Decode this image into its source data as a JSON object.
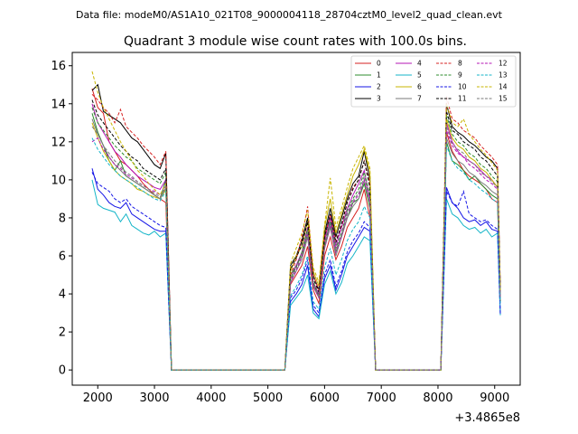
{
  "chart_data": {
    "type": "line",
    "suptitle": "Data file: modeM0/AS1A10_021T08_9000004118_28704cztM0_level2_quad_clean.evt",
    "title": "Quadrant 3 module wise count rates with 100.0s bins.",
    "xlabel": "",
    "ylabel": "",
    "x_offset_label": "+3.4865e8",
    "xlim": [
      1550,
      9450
    ],
    "ylim": [
      -0.8,
      16.7
    ],
    "x_ticks": [
      2000,
      3000,
      4000,
      5000,
      6000,
      7000,
      8000,
      9000
    ],
    "y_ticks": [
      0,
      2,
      4,
      6,
      8,
      10,
      12,
      14,
      16
    ],
    "legend_position": "upper-right",
    "segments": [
      {
        "x_start": 1900,
        "x_end": 3200
      },
      {
        "x_start": 5400,
        "x_end": 6800
      },
      {
        "x_start": 8150,
        "x_end": 9050
      }
    ],
    "gap_ramp_points": [
      3300,
      5300,
      6900,
      8050,
      9100
    ],
    "series": [
      {
        "name": "0",
        "color": "#d62020",
        "dashed": false,
        "s1": [
          14.8,
          13.8,
          13.5,
          12.0,
          11.5,
          11.0,
          10.8,
          10.5,
          10.2,
          9.8,
          9.5,
          9.2,
          9.0,
          8.8
        ],
        "s2": [
          4.5,
          5.0,
          5.5,
          6.5,
          4.2,
          3.5,
          6.0,
          7.0,
          5.8,
          6.5,
          7.5,
          8.0,
          8.5,
          9.5,
          8.0
        ],
        "s3": [
          12.5,
          11.5,
          11.0,
          10.5,
          10.2,
          10.0,
          9.8,
          9.5,
          9.0,
          8.8
        ]
      },
      {
        "name": "1",
        "color": "#2c8c2c",
        "dashed": false,
        "s1": [
          13.5,
          12.5,
          11.8,
          11.0,
          10.5,
          11.0,
          10.2,
          10.0,
          9.8,
          9.6,
          9.4,
          9.2,
          9.0,
          10.0
        ],
        "s2": [
          5.0,
          5.5,
          6.0,
          7.2,
          4.5,
          3.8,
          6.5,
          7.8,
          6.2,
          7.0,
          8.0,
          8.8,
          9.0,
          9.8,
          8.5
        ],
        "s3": [
          12.0,
          11.0,
          10.8,
          10.5,
          10.0,
          10.2,
          9.8,
          9.5,
          9.2,
          9.0
        ]
      },
      {
        "name": "2",
        "color": "#1515e6",
        "dashed": false,
        "s1": [
          10.6,
          9.5,
          9.2,
          8.8,
          8.6,
          8.5,
          8.8,
          8.2,
          8.0,
          7.8,
          7.6,
          7.4,
          7.3,
          7.3
        ],
        "s2": [
          3.6,
          4.0,
          4.5,
          5.5,
          3.2,
          2.8,
          4.8,
          5.5,
          4.2,
          5.0,
          6.0,
          6.5,
          7.0,
          7.5,
          7.3
        ],
        "s3": [
          9.6,
          8.8,
          8.5,
          8.0,
          7.8,
          7.9,
          7.6,
          7.8,
          7.4,
          7.3
        ]
      },
      {
        "name": "3",
        "color": "#000000",
        "dashed": false,
        "s1": [
          14.7,
          15.0,
          13.6,
          13.4,
          13.2,
          13.0,
          12.6,
          12.2,
          12.0,
          11.6,
          11.2,
          10.8,
          10.6,
          11.4
        ],
        "s2": [
          5.5,
          6.0,
          6.8,
          8.0,
          5.0,
          4.2,
          7.2,
          8.5,
          7.0,
          8.0,
          9.0,
          9.8,
          10.2,
          11.5,
          10.0
        ],
        "s3": [
          14.0,
          12.8,
          12.5,
          12.3,
          12.0,
          11.8,
          11.5,
          11.2,
          11.0,
          10.6
        ]
      },
      {
        "name": "4",
        "color": "#b515b5",
        "dashed": false,
        "s1": [
          14.0,
          13.0,
          12.5,
          12.0,
          11.5,
          11.2,
          10.8,
          10.5,
          10.2,
          10.0,
          9.8,
          9.6,
          9.5,
          10.0
        ],
        "s2": [
          4.8,
          5.5,
          6.2,
          7.5,
          4.6,
          4.0,
          6.8,
          8.0,
          6.5,
          7.5,
          8.5,
          9.2,
          9.8,
          10.5,
          9.0
        ],
        "s3": [
          13.0,
          12.0,
          11.5,
          11.2,
          11.0,
          10.8,
          10.5,
          10.2,
          10.0,
          9.6
        ]
      },
      {
        "name": "5",
        "color": "#15b5c8",
        "dashed": false,
        "s1": [
          10.0,
          8.7,
          8.5,
          8.4,
          8.3,
          7.8,
          8.2,
          7.6,
          7.4,
          7.2,
          7.1,
          7.3,
          7.0,
          7.2
        ],
        "s2": [
          3.4,
          3.8,
          4.2,
          5.0,
          3.0,
          2.7,
          4.5,
          5.2,
          4.0,
          4.6,
          5.6,
          6.0,
          6.5,
          7.0,
          6.8
        ],
        "s3": [
          9.0,
          8.2,
          8.0,
          7.6,
          7.4,
          7.5,
          7.2,
          7.4,
          7.0,
          7.2
        ]
      },
      {
        "name": "6",
        "color": "#c8b400",
        "dashed": false,
        "s1": [
          13.0,
          12.2,
          11.5,
          11.0,
          10.5,
          10.2,
          10.0,
          9.8,
          9.5,
          9.4,
          9.2,
          9.1,
          9.0,
          9.5
        ],
        "s2": [
          5.2,
          6.0,
          6.5,
          7.8,
          5.2,
          4.4,
          7.5,
          9.0,
          7.2,
          8.2,
          9.2,
          10.2,
          10.8,
          11.6,
          10.4
        ],
        "s3": [
          13.2,
          12.2,
          11.8,
          11.6,
          11.2,
          11.0,
          10.6,
          10.4,
          10.0,
          9.6
        ]
      },
      {
        "name": "7",
        "color": "#7a7a7a",
        "dashed": false,
        "s1": [
          13.2,
          12.4,
          11.8,
          11.2,
          10.8,
          10.5,
          10.2,
          10.0,
          9.8,
          9.6,
          9.4,
          9.2,
          9.0,
          9.6
        ],
        "s2": [
          4.6,
          5.2,
          5.8,
          7.0,
          4.4,
          3.8,
          6.4,
          7.5,
          6.0,
          7.0,
          8.0,
          8.6,
          9.0,
          10.0,
          8.8
        ],
        "s3": [
          12.2,
          11.4,
          11.0,
          10.8,
          10.4,
          10.2,
          9.9,
          9.7,
          9.4,
          9.2
        ]
      },
      {
        "name": "8",
        "color": "#d62020",
        "dashed": true,
        "s1": [
          14.5,
          14.2,
          13.8,
          13.5,
          13.0,
          13.7,
          12.8,
          12.5,
          12.2,
          11.8,
          11.5,
          11.2,
          10.8,
          11.5
        ],
        "s2": [
          5.0,
          5.8,
          7.0,
          8.6,
          5.0,
          4.2,
          7.0,
          8.2,
          6.8,
          7.6,
          8.8,
          9.6,
          10.0,
          11.0,
          9.8
        ],
        "s3": [
          14.4,
          13.2,
          13.0,
          12.6,
          12.4,
          12.2,
          11.8,
          11.5,
          11.2,
          10.8
        ]
      },
      {
        "name": "9",
        "color": "#2c8c2c",
        "dashed": true,
        "s1": [
          13.8,
          13.0,
          12.6,
          12.2,
          11.8,
          11.5,
          11.2,
          11.0,
          10.6,
          10.4,
          10.2,
          10.0,
          9.8,
          10.4
        ],
        "s2": [
          4.8,
          5.4,
          6.2,
          7.4,
          4.6,
          3.9,
          6.6,
          7.8,
          6.4,
          7.2,
          8.4,
          9.0,
          9.5,
          10.4,
          9.2
        ],
        "s3": [
          13.4,
          12.4,
          12.0,
          11.8,
          11.4,
          11.2,
          10.8,
          10.6,
          10.2,
          9.9
        ]
      },
      {
        "name": "10",
        "color": "#1515e6",
        "dashed": true,
        "s1": [
          10.4,
          9.8,
          9.6,
          9.4,
          9.0,
          8.8,
          9.0,
          8.6,
          8.4,
          8.2,
          8.0,
          7.8,
          7.6,
          7.5
        ],
        "s2": [
          3.8,
          4.2,
          4.8,
          5.8,
          3.4,
          3.0,
          5.0,
          5.8,
          4.4,
          5.2,
          6.2,
          6.8,
          7.2,
          7.8,
          7.5
        ],
        "s3": [
          9.4,
          8.8,
          8.6,
          9.4,
          8.2,
          8.0,
          7.8,
          7.9,
          7.6,
          7.4
        ]
      },
      {
        "name": "11",
        "color": "#000000",
        "dashed": true,
        "s1": [
          14.2,
          13.4,
          13.0,
          12.6,
          12.2,
          11.8,
          11.5,
          11.2,
          11.0,
          10.6,
          10.4,
          10.2,
          10.0,
          10.6
        ],
        "s2": [
          5.3,
          5.9,
          6.6,
          7.8,
          4.8,
          4.1,
          7.0,
          8.2,
          6.7,
          7.7,
          8.8,
          9.5,
          10.0,
          11.0,
          9.6
        ],
        "s3": [
          13.6,
          12.6,
          12.4,
          12.0,
          11.8,
          11.6,
          11.2,
          11.0,
          10.6,
          10.2
        ]
      },
      {
        "name": "12",
        "color": "#b515b5",
        "dashed": true,
        "s1": [
          12.0,
          12.2,
          11.6,
          11.2,
          10.8,
          10.6,
          10.3,
          10.1,
          9.9,
          9.7,
          9.5,
          9.4,
          9.2,
          9.8
        ],
        "s2": [
          4.6,
          5.2,
          6.0,
          7.2,
          4.4,
          3.8,
          6.4,
          7.6,
          6.2,
          7.0,
          8.2,
          8.8,
          9.2,
          10.0,
          8.8
        ],
        "s3": [
          12.6,
          11.8,
          11.4,
          11.2,
          10.8,
          10.6,
          10.3,
          10.0,
          9.8,
          9.5
        ]
      },
      {
        "name": "13",
        "color": "#15b5c8",
        "dashed": true,
        "s1": [
          12.2,
          11.6,
          11.2,
          10.8,
          10.5,
          10.2,
          10.0,
          9.8,
          9.6,
          9.4,
          9.2,
          9.0,
          8.9,
          9.4
        ],
        "s2": [
          3.9,
          4.4,
          5.0,
          6.0,
          3.6,
          3.2,
          5.4,
          6.4,
          5.0,
          5.8,
          6.8,
          7.4,
          7.8,
          8.6,
          8.0
        ],
        "s3": [
          11.8,
          11.0,
          10.6,
          10.4,
          10.0,
          9.8,
          9.5,
          9.3,
          9.0,
          8.8
        ]
      },
      {
        "name": "14",
        "color": "#c8b400",
        "dashed": true,
        "s1": [
          15.7,
          14.6,
          13.8,
          13.2,
          12.6,
          12.0,
          11.5,
          11.0,
          10.5,
          10.2,
          9.8,
          9.5,
          9.2,
          9.8
        ],
        "s2": [
          5.6,
          6.4,
          7.2,
          8.4,
          5.4,
          4.6,
          7.6,
          10.1,
          7.5,
          8.5,
          9.6,
          10.6,
          11.2,
          11.8,
          10.6
        ],
        "s3": [
          14.0,
          13.0,
          12.8,
          13.2,
          12.4,
          12.0,
          11.6,
          11.3,
          10.9,
          10.5
        ]
      },
      {
        "name": "15",
        "color": "#7a7a7a",
        "dashed": true,
        "s1": [
          12.8,
          12.4,
          11.8,
          11.4,
          11.0,
          10.7,
          10.4,
          10.2,
          9.9,
          9.7,
          9.5,
          9.3,
          9.1,
          9.7
        ],
        "s2": [
          4.7,
          5.3,
          6.1,
          7.3,
          4.5,
          3.9,
          6.5,
          7.7,
          6.3,
          7.1,
          8.3,
          8.9,
          9.3,
          10.2,
          9.0
        ],
        "s3": [
          12.8,
          11.9,
          11.6,
          11.4,
          11.0,
          10.8,
          10.4,
          10.2,
          9.9,
          9.6
        ]
      }
    ]
  }
}
